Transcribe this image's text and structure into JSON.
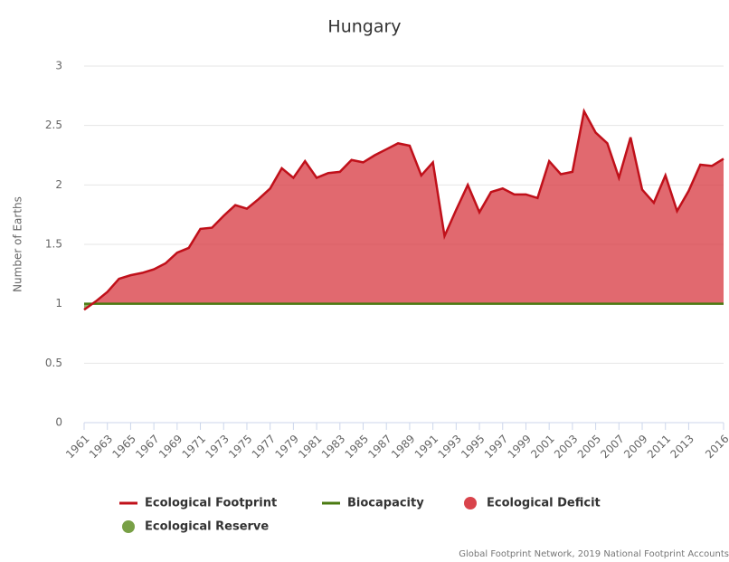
{
  "chart_data": {
    "type": "area",
    "title": "Hungary",
    "y_label": "Number of Earths",
    "x": [
      1961,
      1962,
      1963,
      1964,
      1965,
      1966,
      1967,
      1968,
      1969,
      1970,
      1971,
      1972,
      1973,
      1974,
      1975,
      1976,
      1977,
      1978,
      1979,
      1980,
      1981,
      1982,
      1983,
      1984,
      1985,
      1986,
      1987,
      1988,
      1989,
      1990,
      1991,
      1992,
      1993,
      1994,
      1995,
      1996,
      1997,
      1998,
      1999,
      2000,
      2001,
      2002,
      2003,
      2004,
      2005,
      2006,
      2007,
      2008,
      2009,
      2010,
      2011,
      2012,
      2013,
      2014,
      2015,
      2016
    ],
    "series": [
      {
        "name": "Ecological Footprint",
        "color": "#c0101a",
        "values": [
          0.95,
          1.02,
          1.1,
          1.21,
          1.24,
          1.26,
          1.29,
          1.34,
          1.43,
          1.47,
          1.63,
          1.64,
          1.74,
          1.83,
          1.8,
          1.88,
          1.97,
          2.14,
          2.06,
          2.2,
          2.06,
          2.1,
          2.11,
          2.21,
          2.19,
          2.25,
          2.3,
          2.35,
          2.33,
          2.08,
          2.19,
          1.57,
          1.79,
          2.0,
          1.77,
          1.94,
          1.97,
          1.92,
          1.92,
          1.89,
          2.2,
          2.09,
          2.11,
          2.62,
          2.44,
          2.35,
          2.06,
          2.4,
          1.96,
          1.85,
          2.08,
          1.78,
          1.95,
          2.17,
          2.16,
          2.22
        ]
      },
      {
        "name": "Biocapacity",
        "color": "#4a7a10",
        "values": [
          1.0,
          1.0,
          1.0,
          1.0,
          1.0,
          1.0,
          1.0,
          1.0,
          1.0,
          1.0,
          1.0,
          1.0,
          1.0,
          1.0,
          1.0,
          1.0,
          1.0,
          1.0,
          1.0,
          1.0,
          1.0,
          1.0,
          1.0,
          1.0,
          1.0,
          1.0,
          1.0,
          1.0,
          1.0,
          1.0,
          1.0,
          1.0,
          1.0,
          1.0,
          1.0,
          1.0,
          1.0,
          1.0,
          1.0,
          1.0,
          1.0,
          1.0,
          1.0,
          1.0,
          1.0,
          1.0,
          1.0,
          1.0,
          1.0,
          1.0,
          1.0,
          1.0,
          1.0,
          1.0,
          1.0,
          1.0
        ]
      }
    ],
    "areas": [
      {
        "name": "Ecological Deficit",
        "color": "#d9434b"
      },
      {
        "name": "Ecological Reserve",
        "color": "#78a046"
      }
    ],
    "xlim": [
      1961,
      2016
    ],
    "xticks": [
      1961,
      1963,
      1965,
      1967,
      1969,
      1971,
      1973,
      1975,
      1977,
      1979,
      1981,
      1983,
      1985,
      1987,
      1989,
      1991,
      1993,
      1995,
      1997,
      1999,
      2001,
      2003,
      2005,
      2007,
      2009,
      2011,
      2013,
      2016
    ],
    "ylim": [
      0,
      3
    ],
    "yticks": [
      0,
      0.5,
      1,
      1.5,
      2,
      2.5,
      3
    ],
    "grid": true,
    "credit": "Global Footprint Network, 2019 National Footprint Accounts"
  }
}
